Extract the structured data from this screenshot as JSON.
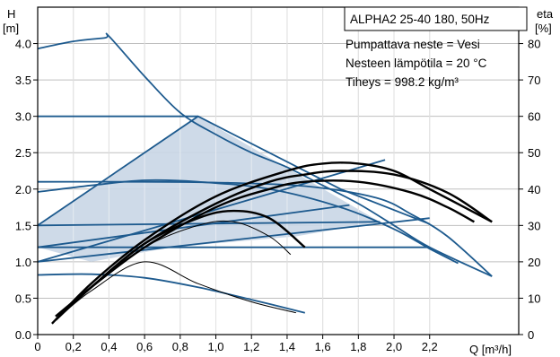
{
  "chart_data": {
    "type": "line",
    "title": "ALPHA2 25-40 180, 50Hz",
    "info": [
      "Pumpattava neste = Vesi",
      "Nesteen lämpötila = 20 °C",
      "Tiheys = 998.2 kg/m³"
    ],
    "x_axis": {
      "label": "Q [m³/h]",
      "range": [
        0,
        2.7
      ],
      "ticks": [
        0,
        0.2,
        0.4,
        0.6,
        0.8,
        1.0,
        1.2,
        1.4,
        1.6,
        1.8,
        2.0,
        2.2
      ],
      "tick_labels": [
        "0",
        "0,2",
        "0,4",
        "0,6",
        "0,8",
        "1,0",
        "1,2",
        "1,4",
        "1,6",
        "1,8",
        "2,0",
        "2,2"
      ]
    },
    "y_left": {
      "label_line1": "H",
      "label_line2": "[m]",
      "range": [
        0,
        4.5
      ],
      "ticks": [
        0,
        0.5,
        1.0,
        1.5,
        2.0,
        2.5,
        3.0,
        3.5,
        4.0
      ],
      "tick_labels": [
        "0.0",
        "0.5",
        "1.0",
        "1.5",
        "2.0",
        "2.5",
        "3.0",
        "3.5",
        "4.0"
      ]
    },
    "y_right": {
      "label_line1": "eta",
      "label_line2": "[%]",
      "range": [
        0,
        90
      ],
      "ticks": [
        0,
        10,
        20,
        30,
        40,
        50,
        60,
        70,
        80
      ],
      "tick_labels": [
        "0",
        "10",
        "20",
        "30",
        "40",
        "50",
        "60",
        "70",
        "80"
      ]
    },
    "grid": true,
    "colors": {
      "head_curves": "#1d5a8e",
      "efficiency_curves": "#000000",
      "shaded_area": "#c9d6e6",
      "grid": "#bfbfbf"
    },
    "shaded_region": {
      "x": [
        0,
        0.9,
        1.92,
        1.45,
        0.75,
        0.3,
        0
      ],
      "y": [
        1.5,
        3.0,
        1.55,
        1.35,
        1.2,
        1.0,
        1.2
      ]
    },
    "head_curves": [
      {
        "x": [
          0,
          0.2,
          0.38,
          0.4,
          0.6,
          0.8,
          1.0,
          1.2,
          1.4,
          1.6,
          1.8,
          2.0,
          2.2,
          2.55
        ],
        "y": [
          3.93,
          4.03,
          4.08,
          4.1,
          3.55,
          3.05,
          2.75,
          2.5,
          2.3,
          2.05,
          1.8,
          1.5,
          1.2,
          0.8
        ]
      },
      {
        "x": [
          0,
          0.3,
          0.6,
          0.9,
          1.3,
          1.7,
          2.0,
          2.2,
          2.36
        ],
        "y": [
          1.96,
          2.05,
          2.12,
          2.1,
          2.0,
          1.75,
          1.45,
          1.18,
          0.98
        ]
      },
      {
        "x": [
          0,
          0.5,
          1.0,
          1.5,
          1.9,
          2.1,
          2.3,
          2.55
        ],
        "y": [
          2.1,
          2.1,
          2.09,
          2.04,
          1.88,
          1.65,
          1.35,
          0.8
        ]
      },
      {
        "x": [
          0,
          0.5,
          0.9
        ],
        "y": [
          3.0,
          3.0,
          3.0
        ]
      },
      {
        "x": [
          0,
          0.3,
          0.6,
          0.9,
          1.2,
          1.5
        ],
        "y": [
          0.82,
          0.83,
          0.78,
          0.65,
          0.48,
          0.3
        ]
      },
      {
        "x": [
          0,
          1.92
        ],
        "y": [
          1.5,
          1.55
        ]
      },
      {
        "x": [
          0,
          1.75
        ],
        "y": [
          1.2,
          1.78
        ]
      },
      {
        "x": [
          0,
          2.2
        ],
        "y": [
          1.2,
          1.2
        ]
      },
      {
        "x": [
          0,
          2.2
        ],
        "y": [
          1.0,
          1.6
        ]
      },
      {
        "x": [
          0,
          0.9,
          1.7,
          2.2
        ],
        "y": [
          1.5,
          3.0,
          2.0,
          1.52
        ]
      },
      {
        "x": [
          0,
          1.95
        ],
        "y": [
          1.0,
          2.4
        ]
      }
    ],
    "efficiency_curves": [
      {
        "x": [
          0.08,
          0.3,
          0.6,
          1.0,
          1.4,
          1.6,
          1.8,
          2.0,
          2.2,
          2.55
        ],
        "eta": [
          3,
          14,
          26,
          38,
          45,
          47,
          47,
          45,
          40,
          31
        ]
      },
      {
        "x": [
          0.1,
          0.3,
          0.6,
          1.0,
          1.3,
          1.5,
          1.7,
          2.0,
          2.3,
          2.55
        ],
        "eta": [
          4,
          13,
          25,
          36,
          42,
          44,
          45,
          44,
          39,
          31
        ]
      },
      {
        "x": [
          0.1,
          0.3,
          0.6,
          1.0,
          1.3,
          1.5,
          1.8,
          2.1,
          2.3,
          2.45
        ],
        "eta": [
          5,
          13,
          24,
          35,
          40,
          42,
          42,
          39,
          35,
          31
        ]
      },
      {
        "x": [
          0.12,
          0.3,
          0.6,
          0.9,
          1.1,
          1.3,
          1.5
        ],
        "eta": [
          5,
          13,
          25,
          32,
          34,
          32,
          24
        ]
      },
      {
        "x": [
          0.12,
          0.3,
          0.6,
          0.9,
          1.1,
          1.3,
          1.42
        ],
        "eta": [
          5,
          13,
          24,
          30,
          31,
          27,
          22
        ]
      },
      {
        "x": [
          0.1,
          0.3,
          0.6,
          0.9,
          1.2,
          1.45
        ],
        "eta": [
          4,
          12,
          20,
          14,
          9,
          6
        ]
      }
    ]
  }
}
